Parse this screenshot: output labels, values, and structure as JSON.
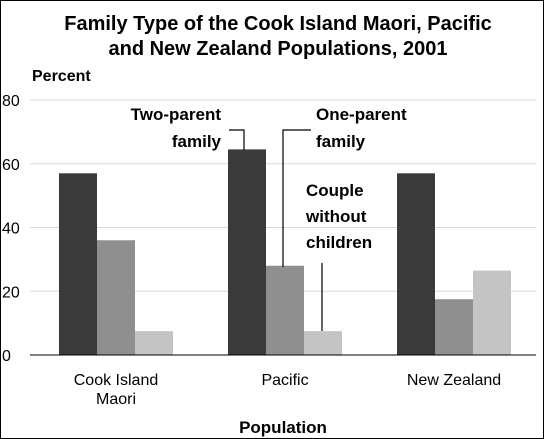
{
  "chart_data": {
    "type": "bar",
    "title_lines": [
      "Family Type of the Cook Island Maori, Pacific",
      "and New Zealand Populations, 2001"
    ],
    "ylabel": "Percent",
    "xlabel": "Population",
    "ylim": [
      0,
      80
    ],
    "yticks": [
      0,
      20,
      40,
      60,
      80
    ],
    "grid": true,
    "categories": [
      {
        "lines": [
          "Cook Island",
          "Maori"
        ]
      },
      {
        "lines": [
          "Pacific"
        ]
      },
      {
        "lines": [
          "New Zealand"
        ]
      }
    ],
    "series": [
      {
        "values": [
          57,
          64.5,
          57
        ],
        "color": "#3a3a3a"
      },
      {
        "values": [
          36,
          28,
          17.5
        ],
        "color": "#8f8f8f"
      },
      {
        "values": [
          7.5,
          7.5,
          26.5
        ],
        "color": "#c4c4c4"
      }
    ],
    "annotations": [
      {
        "lines": [
          "Two-parent",
          "family"
        ]
      },
      {
        "lines": [
          "One-parent",
          "family"
        ]
      },
      {
        "lines": [
          "Couple",
          "without",
          "children"
        ]
      }
    ],
    "colors": {
      "grid": "#d9d9d9",
      "axis": "#000000"
    }
  }
}
